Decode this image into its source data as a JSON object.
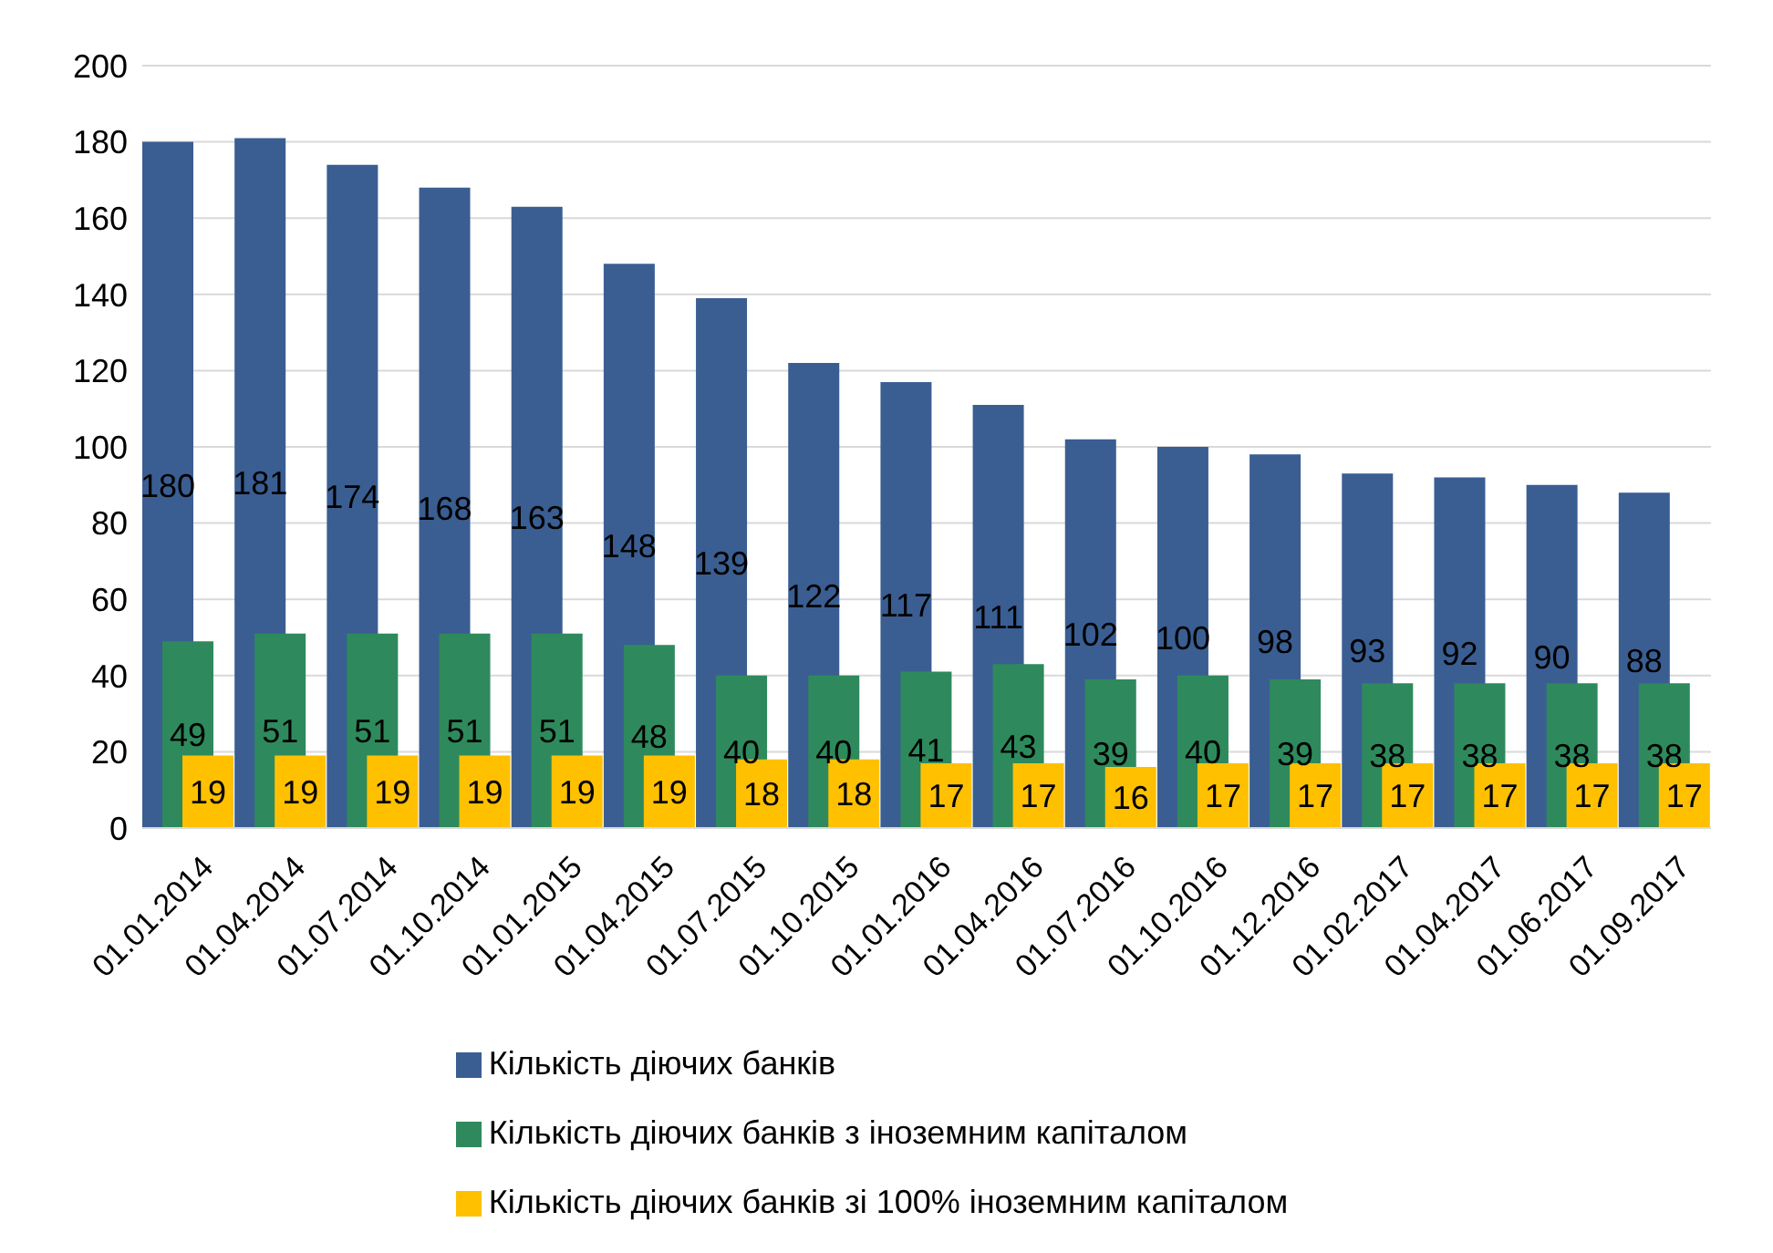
{
  "chart_data": {
    "type": "bar",
    "categories": [
      "01.01.2014",
      "01.04.2014",
      "01.07.2014",
      "01.10.2014",
      "01.01.2015",
      "01.04.2015",
      "01.07.2015",
      "01.10.2015",
      "01.01.2016",
      "01.04.2016",
      "01.07.2016",
      "01.10.2016",
      "01.12.2016",
      "01.02.2017",
      "01.04.2017",
      "01.06.2017",
      "01.09.2017"
    ],
    "series": [
      {
        "name": "Кількість діючих банків",
        "color": "#3a5e92",
        "values": [
          180,
          181,
          174,
          168,
          163,
          148,
          139,
          122,
          117,
          111,
          102,
          100,
          98,
          93,
          92,
          90,
          88
        ]
      },
      {
        "name": "Кількість діючих банків з іноземним капіталом",
        "color": "#2e8a5c",
        "values": [
          49,
          51,
          51,
          51,
          51,
          48,
          40,
          40,
          41,
          43,
          39,
          40,
          39,
          38,
          38,
          38,
          38
        ]
      },
      {
        "name": "Кількість діючих банків зі 100% іноземним капіталом",
        "color": "#ffc000",
        "values": [
          19,
          19,
          19,
          19,
          19,
          19,
          18,
          18,
          17,
          17,
          16,
          17,
          17,
          17,
          17,
          17,
          17
        ]
      }
    ],
    "ylim": [
      0,
      200
    ],
    "yticks": [
      0,
      20,
      40,
      60,
      80,
      100,
      120,
      140,
      160,
      180,
      200
    ],
    "grid": "y",
    "legend": "bottom",
    "data_labels": true
  }
}
